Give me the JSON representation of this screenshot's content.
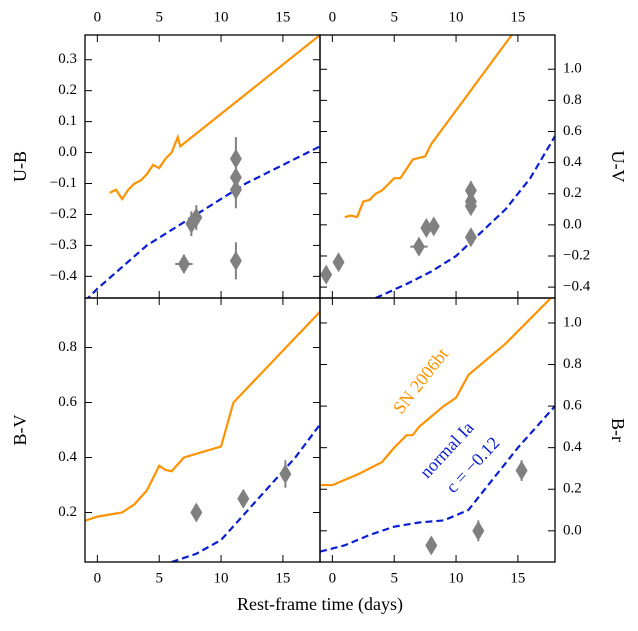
{
  "chart_data": [
    {
      "type": "line",
      "ylabel": "U-B",
      "y_side": "left",
      "x_side": "top",
      "xlim": [
        -1,
        18
      ],
      "xticks": [
        0,
        5,
        10,
        15
      ],
      "ylim": [
        -0.47,
        0.38
      ],
      "yticks": [
        {
          "value": -0.4,
          "label": "−0.4"
        },
        {
          "value": -0.3,
          "label": "−0.3"
        },
        {
          "value": -0.2,
          "label": "−0.2"
        },
        {
          "value": -0.1,
          "label": "−0.1"
        },
        {
          "value": 0.0,
          "label": "0.0"
        },
        {
          "value": 0.1,
          "label": "0.1"
        },
        {
          "value": 0.2,
          "label": "0.2"
        },
        {
          "value": 0.3,
          "label": "0.3"
        }
      ],
      "series": [
        {
          "color": "#ff9200",
          "style": "solid",
          "x": [
            1,
            1.5,
            2,
            2.5,
            3,
            3.5,
            4,
            4.5,
            5,
            5.5,
            6,
            6.5,
            6.7,
            18
          ],
          "values": [
            -0.13,
            -0.12,
            -0.15,
            -0.12,
            -0.1,
            -0.09,
            -0.07,
            -0.04,
            -0.05,
            -0.02,
            0.0,
            0.05,
            0.02,
            0.38
          ]
        },
        {
          "color": "#0a1ed2",
          "style": "dashed",
          "x": [
            -1,
            0,
            2,
            4,
            6,
            8,
            10,
            12,
            14,
            16,
            18
          ],
          "values": [
            -0.48,
            -0.44,
            -0.37,
            -0.3,
            -0.25,
            -0.2,
            -0.15,
            -0.1,
            -0.06,
            -0.02,
            0.02
          ]
        }
      ],
      "points": {
        "color": "#808080",
        "x": [
          7,
          7.6,
          8,
          11.2,
          11.2,
          11.2,
          11.2
        ],
        "values": [
          -0.36,
          -0.23,
          -0.21,
          -0.02,
          -0.08,
          -0.12,
          -0.35
        ],
        "yerr": [
          0.03,
          0.04,
          0.04,
          0.07,
          0.04,
          0.06,
          0.06
        ],
        "xerr": [
          0.7,
          0,
          0,
          0,
          0,
          0,
          0
        ]
      }
    },
    {
      "type": "line",
      "ylabel": "U-V",
      "y_side": "right",
      "x_side": "top",
      "xlim": [
        -1,
        18
      ],
      "xticks": [
        0,
        5,
        10,
        15
      ],
      "ylim": [
        -0.47,
        1.22
      ],
      "yticks": [
        {
          "value": -0.4,
          "label": "−0.4"
        },
        {
          "value": -0.2,
          "label": "−0.2"
        },
        {
          "value": 0.0,
          "label": "0.0"
        },
        {
          "value": 0.2,
          "label": "0.2"
        },
        {
          "value": 0.4,
          "label": "0.4"
        },
        {
          "value": 0.6,
          "label": "0.6"
        },
        {
          "value": 0.8,
          "label": "0.8"
        },
        {
          "value": 1.0,
          "label": "1.0"
        }
      ],
      "series": [
        {
          "color": "#ff9200",
          "style": "solid",
          "x": [
            1,
            1.5,
            2,
            2.5,
            3,
            3.5,
            4,
            5,
            5.5,
            6,
            6.5,
            7,
            7.5,
            8,
            14.5
          ],
          "values": [
            0.05,
            0.06,
            0.05,
            0.15,
            0.16,
            0.2,
            0.22,
            0.3,
            0.3,
            0.36,
            0.42,
            0.43,
            0.44,
            0.52,
            1.22
          ]
        },
        {
          "color": "#0a1ed2",
          "style": "dashed",
          "x": [
            3.5,
            6,
            8,
            10,
            12,
            14,
            16,
            18
          ],
          "values": [
            -0.47,
            -0.38,
            -0.3,
            -0.2,
            -0.05,
            0.1,
            0.3,
            0.57
          ]
        }
      ],
      "points": {
        "color": "#808080",
        "x": [
          -0.5,
          0.5,
          7,
          7.6,
          8.2,
          11.2,
          11.2,
          11.2,
          11.2
        ],
        "values": [
          -0.32,
          -0.24,
          -0.14,
          -0.02,
          -0.01,
          0.22,
          0.15,
          0.12,
          -0.08
        ],
        "yerr": [
          0.04,
          0.03,
          0.04,
          0.03,
          0.03,
          0.06,
          0.05,
          0.05,
          0.04
        ],
        "xerr": [
          0,
          0,
          0.7,
          0,
          0,
          0,
          0,
          0,
          0
        ]
      }
    },
    {
      "type": "line",
      "ylabel": "B-V",
      "y_side": "left",
      "x_side": "bottom",
      "xlabel": "Rest-frame time (days)",
      "xlim": [
        -1,
        18
      ],
      "xticks": [
        0,
        5,
        10,
        15
      ],
      "ylim": [
        0.02,
        0.98
      ],
      "yticks": [
        0.2,
        0.4,
        0.6,
        0.8
      ],
      "series": [
        {
          "color": "#ff9200",
          "style": "solid",
          "x": [
            -1,
            0,
            2,
            3,
            4,
            5,
            5.5,
            6,
            7,
            10,
            11,
            18
          ],
          "values": [
            0.17,
            0.185,
            0.2,
            0.23,
            0.28,
            0.37,
            0.355,
            0.35,
            0.4,
            0.44,
            0.6,
            0.93
          ]
        },
        {
          "color": "#0a1ed2",
          "style": "dashed",
          "x": [
            6,
            8,
            10,
            12,
            14,
            16,
            18
          ],
          "values": [
            0.02,
            0.05,
            0.1,
            0.2,
            0.3,
            0.4,
            0.52
          ]
        }
      ],
      "points": {
        "color": "#808080",
        "x": [
          8,
          11.8,
          15.2
        ],
        "values": [
          0.2,
          0.25,
          0.34
        ],
        "yerr": [
          0.02,
          0.03,
          0.05
        ],
        "xerr": [
          0,
          0,
          0
        ]
      }
    },
    {
      "type": "line",
      "ylabel": "B-r",
      "y_side": "right",
      "x_side": "bottom",
      "xlim": [
        -1,
        18
      ],
      "xticks": [
        0,
        5,
        10,
        15
      ],
      "ylim": [
        -0.15,
        1.12
      ],
      "yticks": [
        {
          "value": 0.0,
          "label": "0.0"
        },
        0.2,
        0.4,
        0.6,
        0.8,
        {
          "value": 1.0,
          "label": "1.0"
        }
      ],
      "series": [
        {
          "color": "#ff9200",
          "style": "solid",
          "x": [
            -1,
            0,
            2,
            4,
            5,
            6,
            6.5,
            7,
            8,
            9,
            10,
            11,
            14,
            18
          ],
          "values": [
            0.22,
            0.22,
            0.27,
            0.33,
            0.4,
            0.46,
            0.46,
            0.5,
            0.55,
            0.6,
            0.64,
            0.75,
            0.9,
            1.14
          ]
        },
        {
          "color": "#0a1ed2",
          "style": "dashed",
          "x": [
            -1,
            1,
            3,
            5,
            7,
            9,
            11,
            13,
            15,
            18
          ],
          "values": [
            -0.1,
            -0.07,
            -0.02,
            0.02,
            0.04,
            0.05,
            0.1,
            0.25,
            0.4,
            0.6
          ]
        }
      ],
      "points": {
        "color": "#808080",
        "x": [
          8,
          11.8,
          15.3
        ],
        "values": [
          -0.07,
          0.0,
          0.29
        ],
        "yerr": [
          0.03,
          0.05,
          0.05
        ],
        "xerr": [
          0,
          0,
          0
        ]
      },
      "annotations": [
        {
          "text": "SN 2006bt",
          "color": "#ff9200"
        },
        {
          "text": "normal Ia",
          "color": "#0a1ed2"
        },
        {
          "text": "c = −0.12",
          "color": "#0a1ed2"
        }
      ]
    }
  ]
}
